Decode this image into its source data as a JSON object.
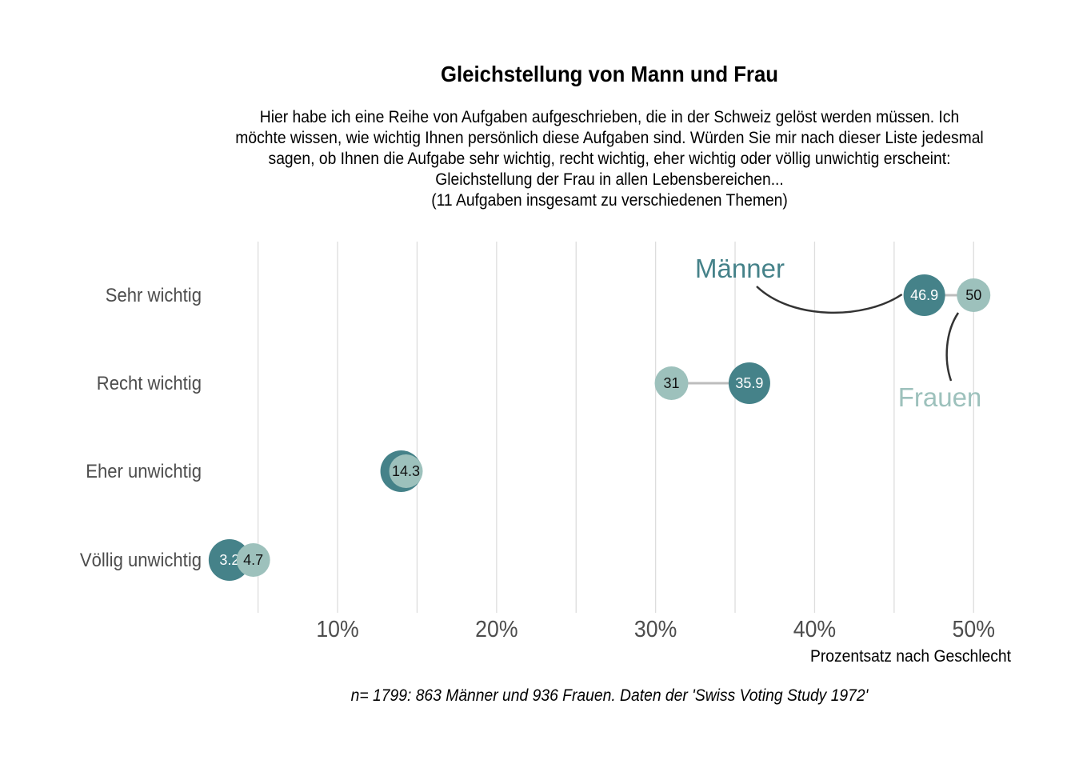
{
  "chart_data": {
    "type": "dumbbell",
    "title": "Gleichstellung von Mann und Frau",
    "subtitle_lines": [
      "Hier habe ich eine Reihe von Aufgaben aufgeschrieben, die in der Schweiz gelöst werden müssen. Ich",
      "möchte wissen, wie wichtig Ihnen persönlich diese Aufgaben sind. Würden Sie mir nach dieser Liste jedesmal",
      "sagen, ob Ihnen die Aufgabe sehr wichtig, recht wichtig, eher wichtig oder völlig unwichtig erscheint:",
      "Gleichstellung der Frau in allen Lebensbereichen...",
      "(11 Aufgaben insgesamt zu verschiedenen Themen)"
    ],
    "categories": [
      "Sehr wichtig",
      "Recht wichtig",
      "Eher unwichtig",
      "Völlig unwichtig"
    ],
    "series": [
      {
        "name": "Männer",
        "values": [
          46.9,
          35.9,
          14.0,
          3.2
        ],
        "labels": [
          "46.9",
          "35.9",
          "14",
          "3.2"
        ],
        "color": "#458289"
      },
      {
        "name": "Frauen",
        "values": [
          50.0,
          31.0,
          14.3,
          4.7
        ],
        "labels": [
          "50",
          "31",
          "14.3",
          "4.7"
        ],
        "color": "#9DC1BC"
      }
    ],
    "xlim": [
      2.0,
      52.0
    ],
    "x_ticks": [
      10,
      20,
      30,
      40,
      50
    ],
    "x_tick_labels": [
      "10%",
      "20%",
      "30%",
      "40%",
      "50%"
    ],
    "x_minor_gridlines": [
      5,
      15,
      25,
      35,
      45
    ],
    "xlabel": "Prozentsatz nach Geschlecht",
    "caption": "n= 1799: 863 Männer und 936 Frauen. Daten der 'Swiss Voting Study 1972'",
    "grid": "vertical",
    "legend": "direct labels with curved arrows",
    "colors": {
      "men": "#458289",
      "women": "#9DC1BC",
      "connector": "#BDBDBD",
      "gridline": "#DDDDDD",
      "arrow": "#333333",
      "axis_text": "#4D4D4D"
    }
  }
}
